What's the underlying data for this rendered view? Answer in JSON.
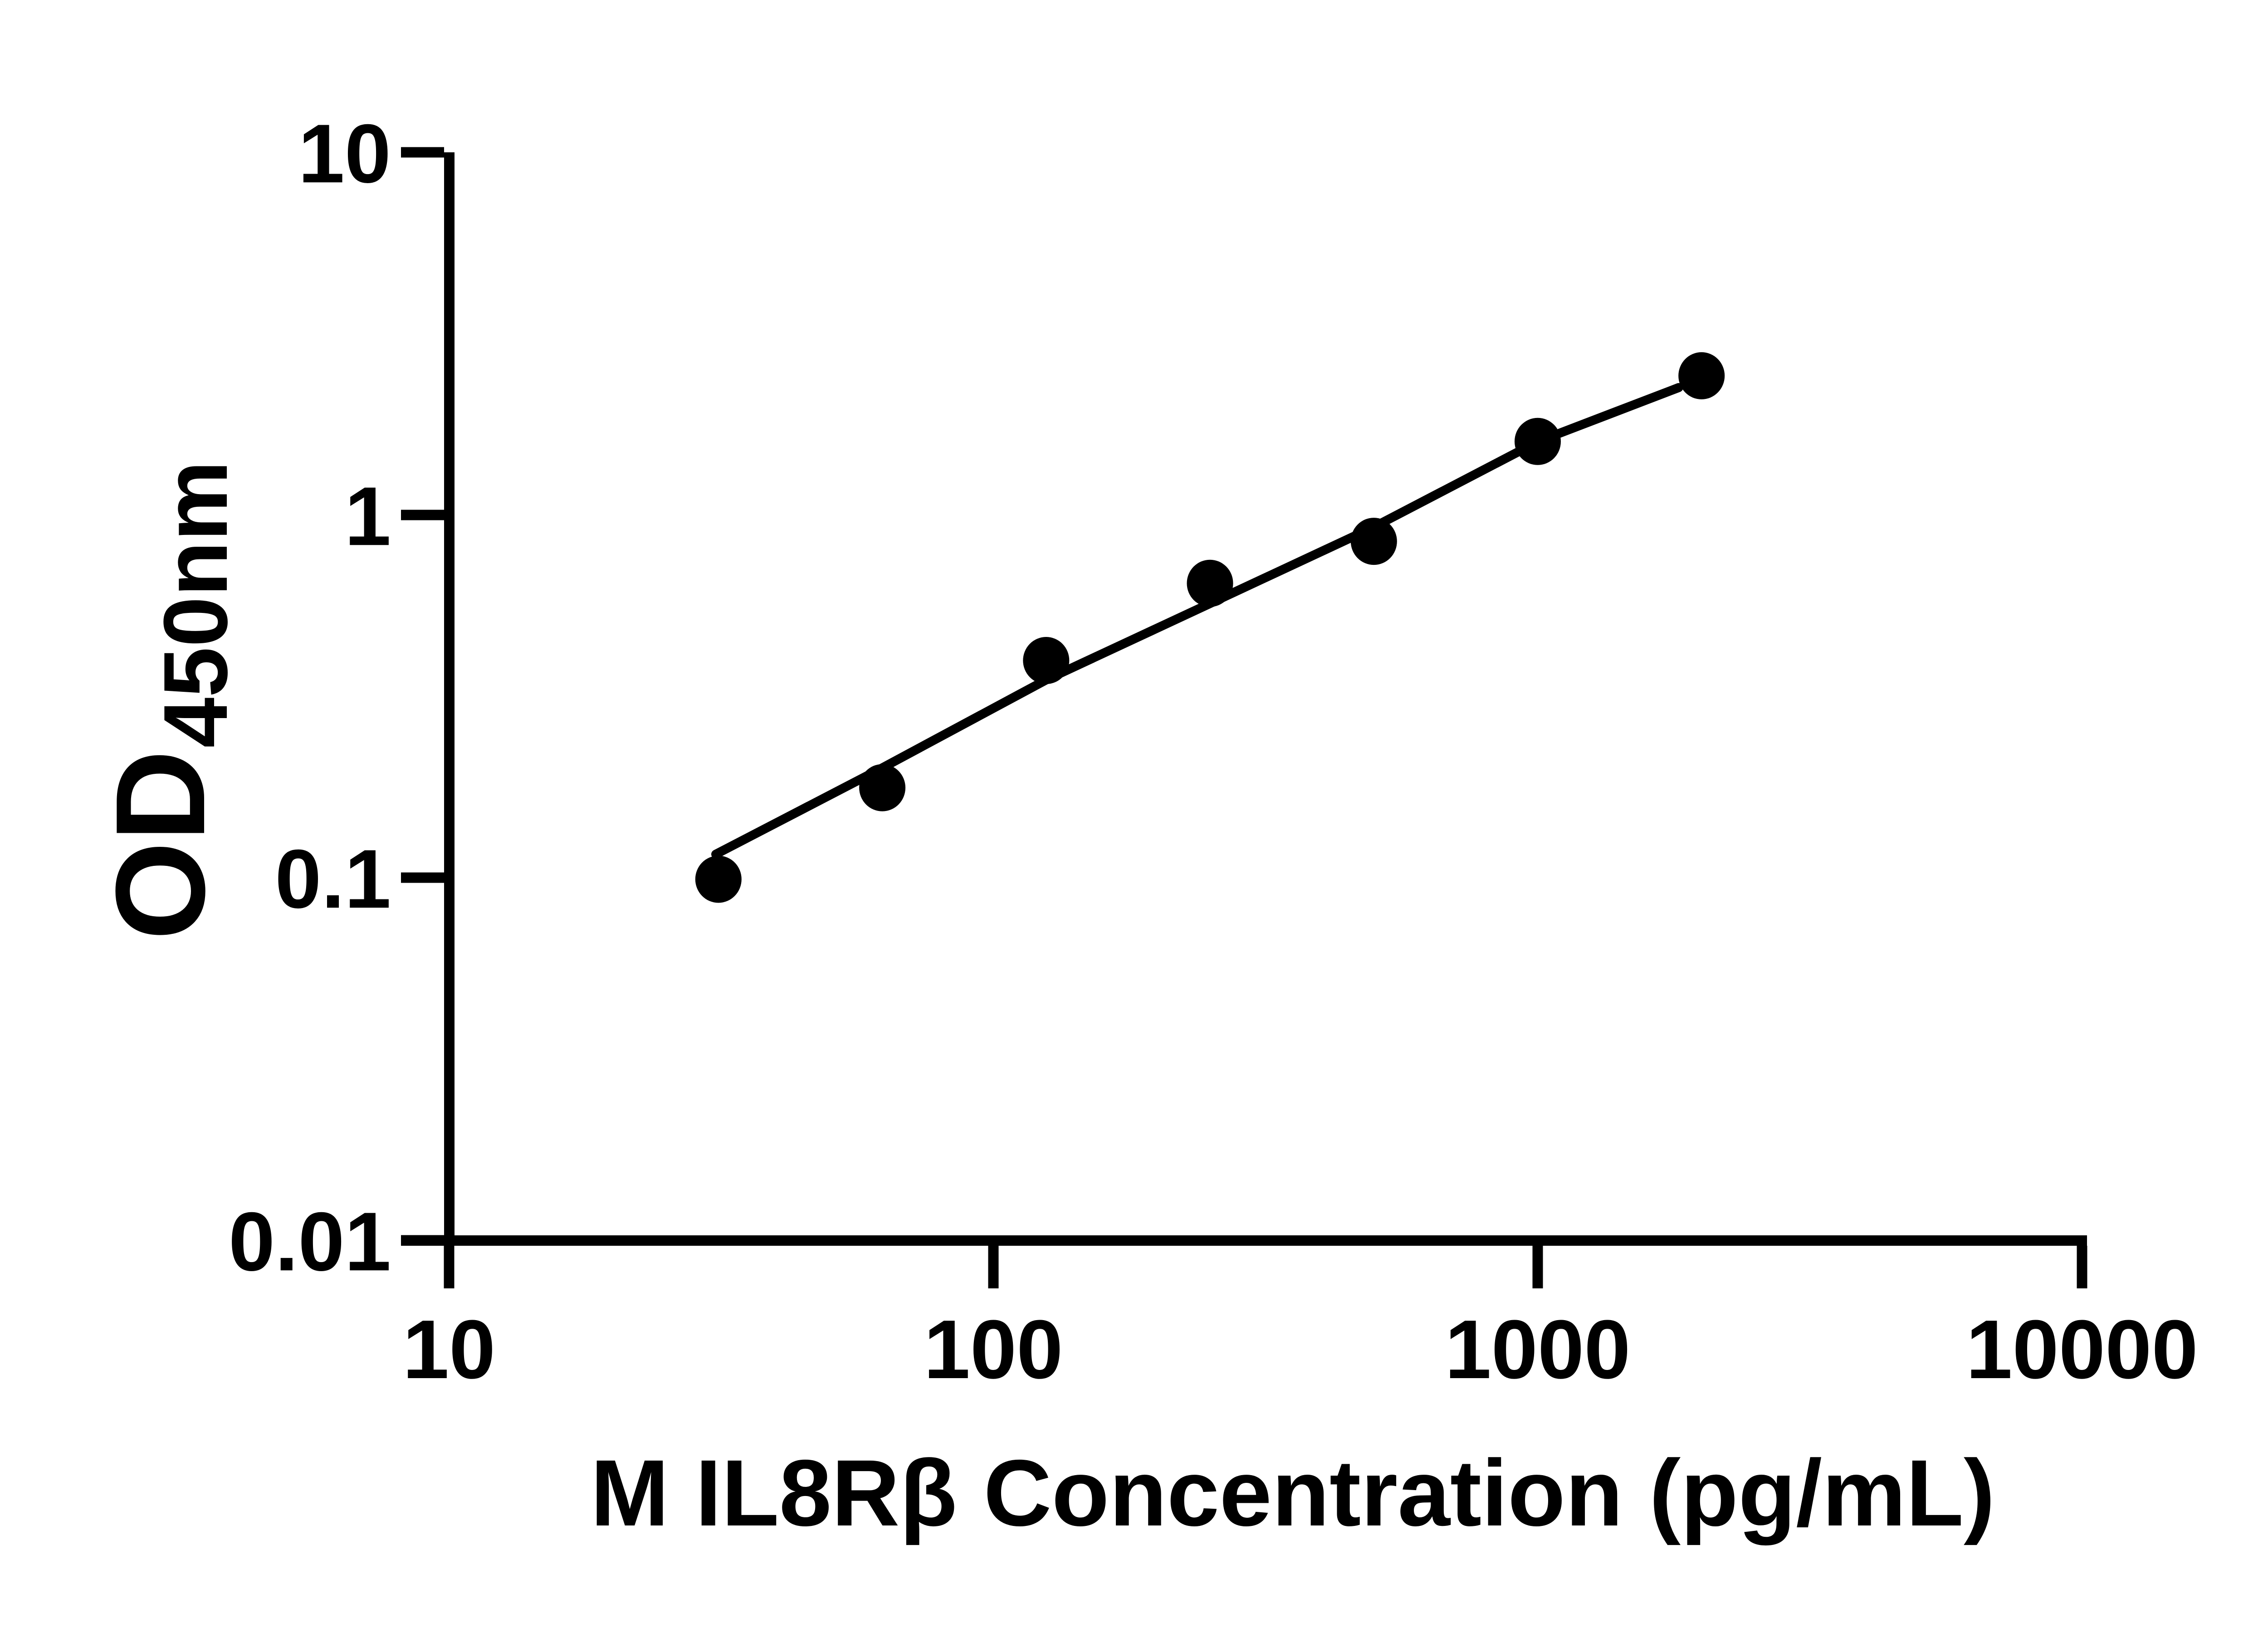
{
  "figure": {
    "background_color": "#ffffff",
    "ink_color": "#000000"
  },
  "y_axis": {
    "label_main": "OD",
    "label_subscript": "450nm"
  },
  "x_axis": {
    "label": "M IL8Rβ Concentration (pg/mL)"
  },
  "chart_data": {
    "type": "scatter",
    "title": "",
    "xlabel": "M IL8Rβ Concentration (pg/mL)",
    "ylabel": "OD450nm",
    "x_scale": "log",
    "y_scale": "log",
    "xlim": [
      10,
      10000
    ],
    "ylim": [
      0.01,
      10
    ],
    "grid": false,
    "legend": "none",
    "x_ticks": [
      10,
      100,
      1000,
      10000
    ],
    "x_tick_labels": [
      "10",
      "100",
      "1000",
      "10000"
    ],
    "y_ticks": [
      10,
      1,
      0.1,
      0.01
    ],
    "y_tick_labels": [
      "10",
      "1",
      "0.1",
      "0.01"
    ],
    "series": [
      {
        "name": "standard-curve-points",
        "marker": "filled-circle",
        "color": "#000000",
        "points": [
          {
            "x": 31.25,
            "y": 0.099
          },
          {
            "x": 62.5,
            "y": 0.177
          },
          {
            "x": 125,
            "y": 0.397
          },
          {
            "x": 250,
            "y": 0.648
          },
          {
            "x": 500,
            "y": 0.846
          },
          {
            "x": 1000,
            "y": 1.595
          },
          {
            "x": 2000,
            "y": 2.42
          }
        ]
      }
    ],
    "trend_line": {
      "name": "fitted-curve",
      "color": "#000000",
      "points": [
        {
          "x": 30.9,
          "y": 0.116
        },
        {
          "x": 62.2,
          "y": 0.2
        },
        {
          "x": 125,
          "y": 0.351
        },
        {
          "x": 250,
          "y": 0.57
        },
        {
          "x": 499,
          "y": 0.925
        },
        {
          "x": 1002,
          "y": 1.595
        },
        {
          "x": 1815,
          "y": 2.245
        }
      ]
    }
  }
}
